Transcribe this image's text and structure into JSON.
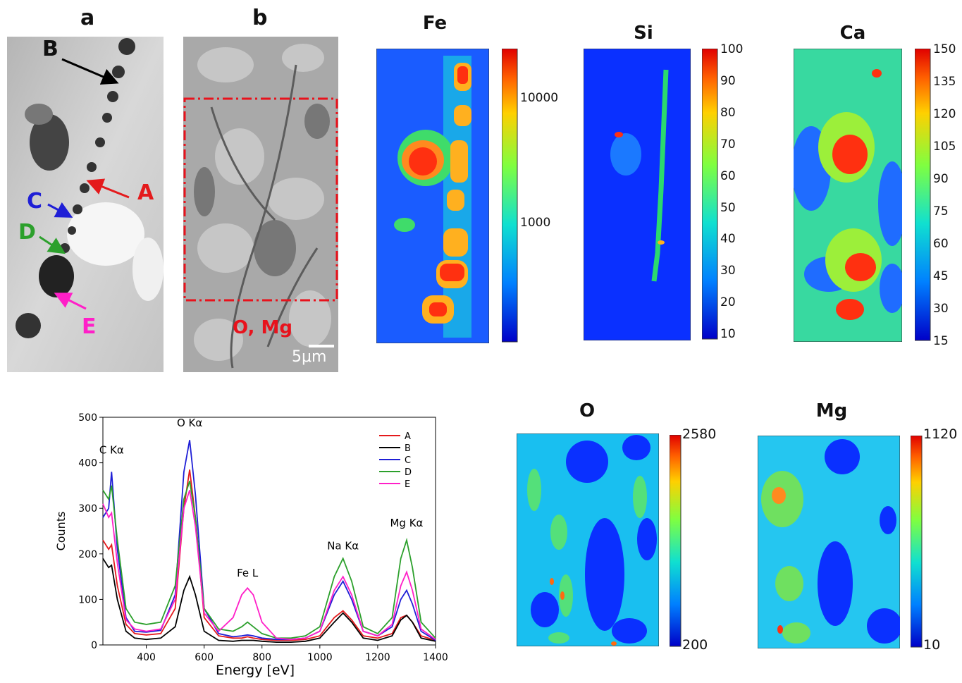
{
  "panels": {
    "a": {
      "letter": "a",
      "labels": {
        "A": "A",
        "B": "B",
        "C": "C",
        "D": "D",
        "E": "E"
      }
    },
    "b": {
      "letter": "b",
      "region_label": "O, Mg",
      "scale_bar": "5μm"
    }
  },
  "maps": {
    "fe": {
      "title": "Fe",
      "ticks": [
        "10000",
        "1000"
      ]
    },
    "si": {
      "title": "Si",
      "ticks": [
        "100",
        "90",
        "80",
        "70",
        "60",
        "50",
        "40",
        "30",
        "20",
        "10"
      ]
    },
    "ca": {
      "title": "Ca",
      "ticks": [
        "150",
        "135",
        "120",
        "105",
        "90",
        "75",
        "60",
        "45",
        "30",
        "15"
      ]
    },
    "o": {
      "title": "O",
      "ticks": [
        "2580",
        "200"
      ]
    },
    "mg": {
      "title": "Mg",
      "ticks": [
        "1120",
        "10"
      ]
    }
  },
  "colors": {
    "A": "#e41a1c",
    "B": "#000000",
    "C": "#1f1fd6",
    "D": "#2ca02c",
    "E": "#ff1fc8",
    "roi": "#e8121c"
  },
  "chart_data": {
    "type": "line",
    "title": "",
    "xlabel": "Energy [eV]",
    "ylabel": "Counts",
    "xlim": [
      250,
      1400
    ],
    "ylim": [
      0,
      500
    ],
    "xticks": [
      400,
      600,
      800,
      1000,
      1200,
      1400
    ],
    "yticks": [
      0,
      100,
      200,
      300,
      400,
      500
    ],
    "peaks": [
      {
        "label": "C Kα",
        "energy": 280
      },
      {
        "label": "O Kα",
        "energy": 550
      },
      {
        "label": "Fe L",
        "energy": 750
      },
      {
        "label": "Na Kα",
        "energy": 1080
      },
      {
        "label": "Mg Kα",
        "energy": 1300
      }
    ],
    "legend_position": "top-right",
    "series": [
      {
        "name": "A",
        "color": "#e41a1c",
        "x": [
          250,
          270,
          280,
          300,
          330,
          360,
          400,
          450,
          500,
          530,
          550,
          570,
          600,
          650,
          700,
          730,
          750,
          770,
          800,
          850,
          900,
          950,
          1000,
          1050,
          1080,
          1110,
          1150,
          1200,
          1250,
          1280,
          1300,
          1320,
          1350,
          1400
        ],
        "values": [
          230,
          210,
          220,
          130,
          45,
          25,
          22,
          25,
          80,
          300,
          385,
          280,
          60,
          20,
          15,
          15,
          18,
          15,
          12,
          10,
          10,
          12,
          20,
          60,
          75,
          55,
          20,
          15,
          25,
          60,
          65,
          50,
          20,
          10
        ]
      },
      {
        "name": "B",
        "color": "#000000",
        "x": [
          250,
          270,
          280,
          300,
          330,
          360,
          400,
          450,
          500,
          530,
          550,
          570,
          600,
          650,
          700,
          730,
          750,
          770,
          800,
          850,
          900,
          950,
          1000,
          1050,
          1080,
          1110,
          1150,
          1200,
          1250,
          1280,
          1300,
          1320,
          1350,
          1400
        ],
        "values": [
          190,
          170,
          175,
          100,
          30,
          15,
          12,
          15,
          40,
          120,
          150,
          110,
          30,
          10,
          8,
          10,
          10,
          10,
          8,
          6,
          6,
          8,
          15,
          50,
          70,
          50,
          15,
          10,
          20,
          55,
          65,
          50,
          15,
          8
        ]
      },
      {
        "name": "C",
        "color": "#1f1fd6",
        "x": [
          250,
          270,
          280,
          300,
          330,
          360,
          400,
          450,
          500,
          530,
          550,
          570,
          600,
          650,
          700,
          730,
          750,
          770,
          800,
          850,
          900,
          950,
          1000,
          1050,
          1080,
          1110,
          1150,
          1200,
          1250,
          1280,
          1300,
          1320,
          1350,
          1400
        ],
        "values": [
          280,
          300,
          380,
          210,
          60,
          30,
          28,
          32,
          110,
          380,
          450,
          330,
          80,
          25,
          18,
          20,
          22,
          20,
          15,
          12,
          12,
          15,
          30,
          110,
          140,
          100,
          30,
          20,
          40,
          100,
          120,
          90,
          30,
          10
        ]
      },
      {
        "name": "D",
        "color": "#2ca02c",
        "x": [
          250,
          270,
          280,
          300,
          330,
          360,
          400,
          450,
          500,
          530,
          550,
          570,
          600,
          650,
          700,
          730,
          750,
          770,
          800,
          850,
          900,
          950,
          1000,
          1050,
          1080,
          1110,
          1150,
          1200,
          1250,
          1280,
          1300,
          1320,
          1350,
          1400
        ],
        "values": [
          340,
          320,
          350,
          230,
          80,
          50,
          45,
          50,
          130,
          320,
          360,
          280,
          80,
          35,
          30,
          40,
          50,
          40,
          25,
          15,
          15,
          20,
          40,
          150,
          190,
          140,
          40,
          25,
          60,
          190,
          230,
          170,
          50,
          15
        ]
      },
      {
        "name": "E",
        "color": "#ff1fc8",
        "x": [
          250,
          270,
          280,
          300,
          330,
          360,
          400,
          450,
          500,
          530,
          550,
          570,
          600,
          650,
          700,
          730,
          750,
          770,
          800,
          850,
          900,
          950,
          1000,
          1050,
          1080,
          1110,
          1150,
          1200,
          1250,
          1280,
          1300,
          1320,
          1350,
          1400
        ],
        "values": [
          310,
          280,
          290,
          180,
          55,
          35,
          30,
          35,
          100,
          300,
          340,
          260,
          70,
          30,
          60,
          110,
          125,
          110,
          50,
          15,
          12,
          15,
          30,
          120,
          150,
          110,
          30,
          20,
          45,
          130,
          160,
          120,
          35,
          12
        ]
      }
    ]
  }
}
